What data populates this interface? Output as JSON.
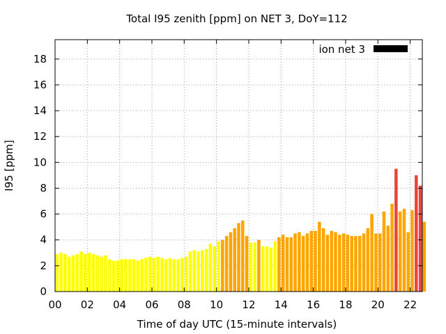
{
  "chart_data": {
    "type": "bar",
    "title": "Total I95 zenith [ppm] on NET 3, DoY=112",
    "xlabel": "Time of day UTC (15-minute intervals)",
    "ylabel": "I95 [ppm]",
    "xlim": [
      0,
      22.75
    ],
    "ylim": [
      0,
      19.5
    ],
    "x_ticks": [
      "00",
      "02",
      "04",
      "06",
      "08",
      "10",
      "12",
      "14",
      "16",
      "18",
      "20",
      "22"
    ],
    "y_ticks": [
      "0",
      "2",
      "4",
      "6",
      "8",
      "10",
      "12",
      "14",
      "16",
      "18"
    ],
    "grid": true,
    "legend": {
      "position": "top-right",
      "entries": [
        {
          "label": "ion net 3",
          "color": "#000000"
        }
      ]
    },
    "series": [
      {
        "name": "ion net 3",
        "interval_hours": 0.25,
        "values": [
          2.9,
          3.0,
          2.9,
          2.7,
          2.8,
          2.9,
          3.1,
          2.9,
          3.0,
          2.9,
          2.8,
          2.7,
          2.8,
          2.5,
          2.4,
          2.4,
          2.5,
          2.5,
          2.5,
          2.5,
          2.4,
          2.5,
          2.6,
          2.7,
          2.6,
          2.7,
          2.6,
          2.5,
          2.6,
          2.5,
          2.5,
          2.6,
          2.7,
          3.1,
          3.2,
          3.1,
          3.2,
          3.3,
          3.7,
          3.5,
          3.9,
          4.0,
          4.3,
          4.6,
          4.9,
          5.3,
          5.5,
          4.3,
          3.8,
          3.8,
          4.0,
          3.5,
          3.5,
          3.4,
          3.9,
          4.2,
          4.4,
          4.2,
          4.2,
          4.5,
          4.6,
          4.3,
          4.5,
          4.7,
          4.7,
          5.4,
          4.9,
          4.4,
          4.7,
          4.6,
          4.4,
          4.5,
          4.4,
          4.3,
          4.3,
          4.3,
          4.5,
          4.9,
          6.0,
          4.5,
          4.5,
          6.2,
          5.1,
          6.8,
          9.5,
          6.2,
          6.4,
          4.6,
          6.3,
          9.0,
          8.2,
          5.4
        ],
        "colors": [
          "#ffff00",
          "#ffff00",
          "#ffff00",
          "#ffff00",
          "#ffff00",
          "#ffff00",
          "#ffff00",
          "#ffff00",
          "#ffff00",
          "#ffff00",
          "#ffff00",
          "#ffff00",
          "#ffff00",
          "#ffff00",
          "#ffff00",
          "#ffff00",
          "#ffff00",
          "#ffff00",
          "#ffff00",
          "#ffff00",
          "#ffff00",
          "#ffff00",
          "#ffff00",
          "#ffff00",
          "#ffff00",
          "#ffff00",
          "#ffff00",
          "#ffff00",
          "#ffff00",
          "#ffff00",
          "#ffff00",
          "#ffff00",
          "#ffff00",
          "#ffff00",
          "#ffff00",
          "#ffff00",
          "#ffff00",
          "#ffff00",
          "#ffff00",
          "#ffff00",
          "#ffff00",
          "#ffa500",
          "#ffa500",
          "#ffa500",
          "#ffa500",
          "#ffa500",
          "#ffa500",
          "#ffa500",
          "#ffff00",
          "#ffff00",
          "#ffa500",
          "#ffff00",
          "#ffff00",
          "#ffff00",
          "#ffff00",
          "#ffa500",
          "#ffa500",
          "#ffa500",
          "#ffa500",
          "#ffa500",
          "#ffa500",
          "#ffa500",
          "#ffa500",
          "#ffa500",
          "#ffa500",
          "#ffa500",
          "#ffa500",
          "#ffa500",
          "#ffa500",
          "#ffa500",
          "#ffa500",
          "#ffa500",
          "#ffa500",
          "#ffa500",
          "#ffa500",
          "#ffa500",
          "#ffa500",
          "#ffa500",
          "#ffa500",
          "#ffa500",
          "#ffa500",
          "#ffa500",
          "#ffa500",
          "#ffa500",
          "#e8443a",
          "#ffa500",
          "#ffa500",
          "#ffa500",
          "#ffa500",
          "#e8443a",
          "#e8443a",
          "#ffa500"
        ]
      }
    ]
  }
}
